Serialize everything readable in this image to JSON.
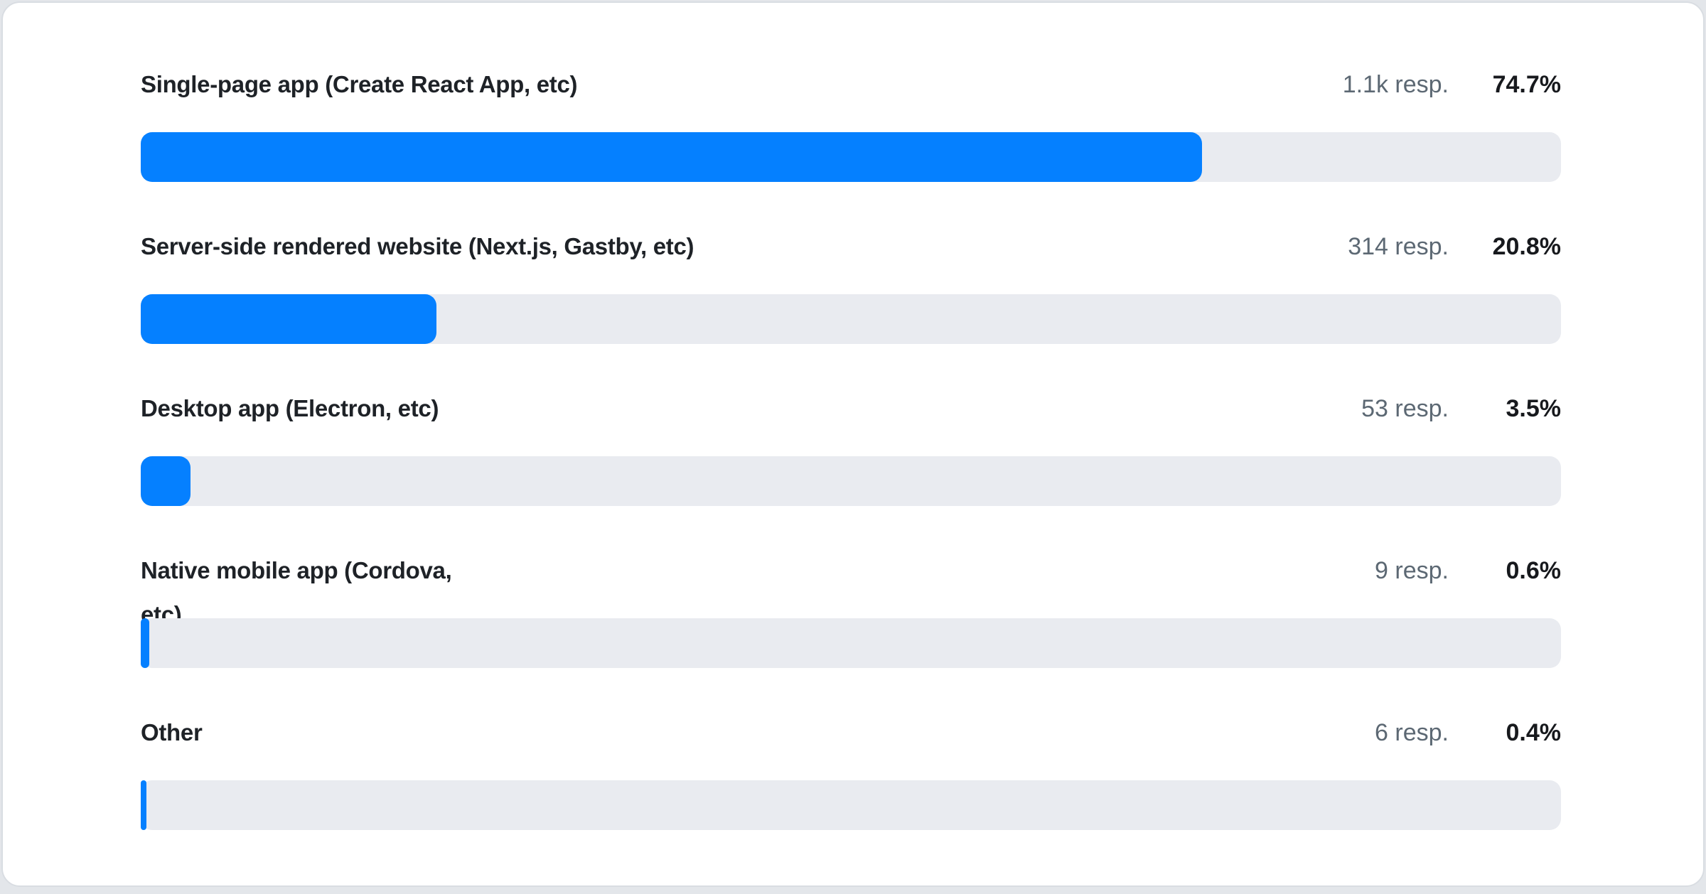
{
  "page": {
    "background_color": "#e3e6ea",
    "card_background": "#ffffff",
    "card_border_color": "#d9dde2"
  },
  "chart_data": {
    "type": "bar",
    "orientation": "horizontal",
    "title": "",
    "xlabel": "",
    "ylabel": "",
    "xlim": [
      0,
      100
    ],
    "grid": false,
    "legend": false,
    "bar_color": "#0580ff",
    "track_color": "#e9ebf0",
    "categories": [
      "Single-page app (Create React App, etc)",
      "Server-side rendered website (Next.js, Gastby, etc)",
      "Desktop app (Electron, etc)",
      "Native mobile app (Cordova, etc)",
      "Other"
    ],
    "values": [
      74.7,
      20.8,
      3.5,
      0.6,
      0.4
    ],
    "value_labels": [
      "74.7%",
      "20.8%",
      "3.5%",
      "0.6%",
      "0.4%"
    ],
    "response_labels": [
      "1.1k resp.",
      "314 resp.",
      "53 resp.",
      "9 resp.",
      "6 resp."
    ],
    "response_counts": [
      1100,
      314,
      53,
      9,
      6
    ]
  }
}
